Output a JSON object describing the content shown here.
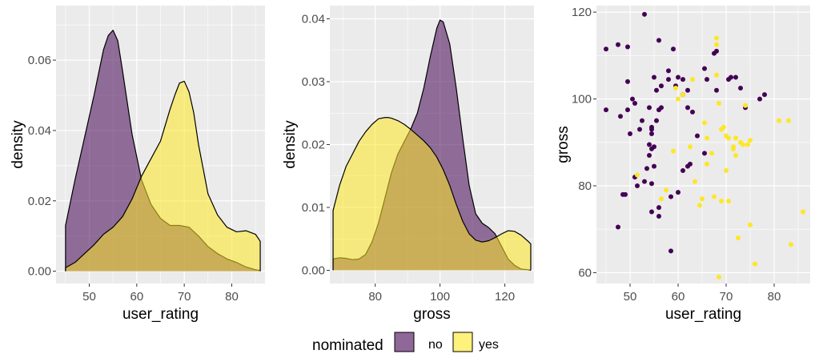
{
  "colors": {
    "panel_bg": "#EBEBEB",
    "grid": "#FFFFFF",
    "no": "#440154",
    "yes": "#FDE725",
    "tick_text": "#4D4D4D",
    "outline": "#000000"
  },
  "legend": {
    "title": "nominated",
    "items": [
      {
        "label": "no",
        "color": "#440154"
      },
      {
        "label": "yes",
        "color": "#FDE725"
      }
    ],
    "position": "bottom"
  },
  "chart_data": [
    {
      "type": "area",
      "subtype": "density",
      "xlabel": "user_rating",
      "ylabel": "density",
      "xlim": [
        43,
        87
      ],
      "ylim": [
        -0.0035,
        0.0755
      ],
      "x_ticks": [
        50,
        60,
        70,
        80
      ],
      "x_tick_labels": [
        "50",
        "60",
        "70",
        "80"
      ],
      "y_ticks": [
        0,
        0.02,
        0.04,
        0.06
      ],
      "y_tick_labels": [
        "0.00",
        "0.02",
        "0.04",
        "0.06"
      ],
      "grid": true,
      "series": [
        {
          "name": "no",
          "color": "#440154",
          "fill_opacity": 0.55,
          "x": [
            45,
            47,
            49,
            51,
            53,
            54,
            55,
            56,
            57,
            59,
            61,
            63,
            65,
            67,
            69,
            71,
            73,
            75,
            77,
            79,
            81,
            83,
            85,
            86
          ],
          "y": [
            0.013,
            0.026,
            0.038,
            0.05,
            0.063,
            0.067,
            0.0685,
            0.0655,
            0.057,
            0.039,
            0.026,
            0.019,
            0.015,
            0.013,
            0.013,
            0.0125,
            0.01,
            0.007,
            0.005,
            0.0035,
            0.0025,
            0.0012,
            0.0004,
            0.0002
          ]
        },
        {
          "name": "yes",
          "color": "#FDE725",
          "fill_opacity": 0.55,
          "x": [
            45,
            47,
            49,
            51,
            53,
            55,
            57,
            59,
            61,
            63,
            65,
            67,
            68,
            69,
            70,
            71,
            72,
            73,
            75,
            77,
            79,
            81,
            83,
            85,
            86
          ],
          "y": [
            0.001,
            0.0025,
            0.005,
            0.0075,
            0.0105,
            0.0125,
            0.0155,
            0.0205,
            0.027,
            0.032,
            0.037,
            0.046,
            0.05,
            0.0535,
            0.054,
            0.051,
            0.045,
            0.036,
            0.022,
            0.016,
            0.0125,
            0.0112,
            0.0115,
            0.0105,
            0.0085
          ]
        }
      ]
    },
    {
      "type": "area",
      "subtype": "density",
      "xlabel": "gross",
      "ylabel": "density",
      "xlim": [
        66,
        129
      ],
      "ylim": [
        -0.0021,
        0.0421
      ],
      "x_ticks": [
        80,
        100,
        120
      ],
      "x_tick_labels": [
        "80",
        "100",
        "120"
      ],
      "y_ticks": [
        0,
        0.01,
        0.02,
        0.03,
        0.04
      ],
      "y_tick_labels": [
        "0.00",
        "0.01",
        "0.02",
        "0.03",
        "0.04"
      ],
      "grid": true,
      "series": [
        {
          "name": "no",
          "color": "#440154",
          "fill_opacity": 0.55,
          "x": [
            67,
            69,
            71,
            73,
            75,
            77,
            79,
            81,
            83,
            85,
            87,
            89,
            91,
            93,
            95,
            97,
            99,
            100,
            101,
            103,
            105,
            107,
            109,
            111,
            113,
            115,
            117,
            119,
            121,
            123,
            125,
            127,
            128
          ],
          "y": [
            0.0018,
            0.002,
            0.0019,
            0.0017,
            0.0018,
            0.0025,
            0.0045,
            0.0075,
            0.0115,
            0.0155,
            0.0185,
            0.0205,
            0.0225,
            0.025,
            0.029,
            0.034,
            0.0385,
            0.0398,
            0.0395,
            0.036,
            0.029,
            0.021,
            0.0135,
            0.009,
            0.0075,
            0.0068,
            0.0058,
            0.0038,
            0.0018,
            0.0008,
            0.0002,
            0.0001,
            0.0
          ]
        },
        {
          "name": "yes",
          "color": "#FDE725",
          "fill_opacity": 0.55,
          "x": [
            67,
            69,
            71,
            73,
            75,
            77,
            79,
            81,
            83,
            84,
            85,
            87,
            89,
            91,
            93,
            95,
            97,
            99,
            101,
            103,
            105,
            107,
            109,
            111,
            113,
            115,
            117,
            119,
            121,
            123,
            125,
            127,
            128
          ],
          "y": [
            0.0095,
            0.0135,
            0.0165,
            0.0185,
            0.0205,
            0.022,
            0.0232,
            0.0241,
            0.0243,
            0.0243,
            0.0242,
            0.0238,
            0.0232,
            0.0224,
            0.0215,
            0.0206,
            0.0195,
            0.018,
            0.016,
            0.0135,
            0.0105,
            0.0078,
            0.0058,
            0.0048,
            0.0045,
            0.0047,
            0.0052,
            0.0058,
            0.0063,
            0.0062,
            0.0056,
            0.0047,
            0.0042
          ]
        }
      ]
    },
    {
      "type": "scatter",
      "xlabel": "user_rating",
      "ylabel": "gross",
      "xlim": [
        43,
        87.5
      ],
      "ylim": [
        57.5,
        121.5
      ],
      "x_ticks": [
        50,
        60,
        70,
        80
      ],
      "x_tick_labels": [
        "50",
        "60",
        "70",
        "80"
      ],
      "y_ticks": [
        60,
        80,
        100,
        120
      ],
      "y_tick_labels": [
        "60",
        "80",
        "100",
        "120"
      ],
      "grid": true,
      "series": [
        {
          "name": "no",
          "color": "#440154",
          "points": [
            [
              45,
              111.5
            ],
            [
              45,
              97.5
            ],
            [
              47.5,
              112.5
            ],
            [
              48,
              96
            ],
            [
              49.5,
              112
            ],
            [
              49.5,
              104
            ],
            [
              49.5,
              97.5
            ],
            [
              50,
              92
            ],
            [
              50.5,
              100
            ],
            [
              51,
              99
            ],
            [
              51,
              82
            ],
            [
              51.5,
              80
            ],
            [
              52,
              93
            ],
            [
              52.5,
              95
            ],
            [
              53,
              119.5
            ],
            [
              53,
              81
            ],
            [
              53.5,
              84
            ],
            [
              54,
              98
            ],
            [
              54,
              89.5
            ],
            [
              54,
              87
            ],
            [
              54.5,
              93.5
            ],
            [
              54.5,
              93
            ],
            [
              54.5,
              92
            ],
            [
              54.5,
              88.5
            ],
            [
              54.5,
              80.5
            ],
            [
              54.5,
              74
            ],
            [
              55,
              105
            ],
            [
              55,
              89
            ],
            [
              55,
              84.5
            ],
            [
              55.5,
              102
            ],
            [
              55.5,
              95
            ],
            [
              56,
              113.5
            ],
            [
              56,
              97.5
            ],
            [
              56,
              75
            ],
            [
              56,
              73
            ],
            [
              56.5,
              103
            ],
            [
              56.5,
              98
            ],
            [
              58,
              104.5
            ],
            [
              58,
              106.5
            ],
            [
              58.5,
              65
            ],
            [
              59,
              111.5
            ],
            [
              59.5,
              103
            ],
            [
              60,
              105
            ],
            [
              60,
              78.5
            ],
            [
              61,
              101
            ],
            [
              61,
              104.5
            ],
            [
              62,
              102
            ],
            [
              62,
              98
            ],
            [
              63,
              97
            ],
            [
              64,
              91.5
            ],
            [
              65.5,
              107
            ],
            [
              65.5,
              87.5
            ],
            [
              66,
              104.5
            ],
            [
              67.5,
              110.5
            ],
            [
              68,
              111
            ],
            [
              68,
              102
            ],
            [
              70.5,
              104.5
            ],
            [
              71,
              105
            ],
            [
              72,
              105
            ],
            [
              73,
              102.5
            ],
            [
              74,
              98
            ],
            [
              77,
              100
            ],
            [
              78,
              101
            ],
            [
              48.5,
              78
            ],
            [
              47.5,
              70.5
            ],
            [
              61,
              83.5
            ],
            [
              62,
              84.5
            ],
            [
              62.5,
              85
            ],
            [
              58.5,
              77.5
            ],
            [
              49,
              78
            ]
          ]
        },
        {
          "name": "yes",
          "color": "#FDE725",
          "points": [
            [
              51.5,
              82.5
            ],
            [
              56.5,
              77
            ],
            [
              57.5,
              79
            ],
            [
              59,
              88
            ],
            [
              59.5,
              102.5
            ],
            [
              60,
              100
            ],
            [
              61,
              101
            ],
            [
              62.5,
              89
            ],
            [
              63,
              104.5
            ],
            [
              63.5,
              81
            ],
            [
              64.5,
              75.5
            ],
            [
              65,
              77
            ],
            [
              65.5,
              94.5
            ],
            [
              66,
              91
            ],
            [
              66,
              85
            ],
            [
              67,
              87.5
            ],
            [
              67.5,
              77.5
            ],
            [
              68,
              114
            ],
            [
              68,
              112.5
            ],
            [
              68,
              105.5
            ],
            [
              68.5,
              99
            ],
            [
              68.5,
              59
            ],
            [
              69,
              76.5
            ],
            [
              69,
              93
            ],
            [
              69.5,
              93.5
            ],
            [
              70,
              91.5
            ],
            [
              70,
              83.5
            ],
            [
              70.5,
              91
            ],
            [
              70.5,
              76.5
            ],
            [
              71.5,
              89
            ],
            [
              71.5,
              88.5
            ],
            [
              72,
              91
            ],
            [
              72,
              87
            ],
            [
              72.5,
              68
            ],
            [
              73,
              90
            ],
            [
              73.5,
              89.5
            ],
            [
              74,
              98.5
            ],
            [
              74.5,
              89.5
            ],
            [
              75,
              90.5
            ],
            [
              75,
              71
            ],
            [
              76,
              62
            ],
            [
              81,
              95
            ],
            [
              83,
              95
            ],
            [
              83.5,
              66.5
            ],
            [
              86,
              74
            ]
          ]
        }
      ]
    }
  ]
}
